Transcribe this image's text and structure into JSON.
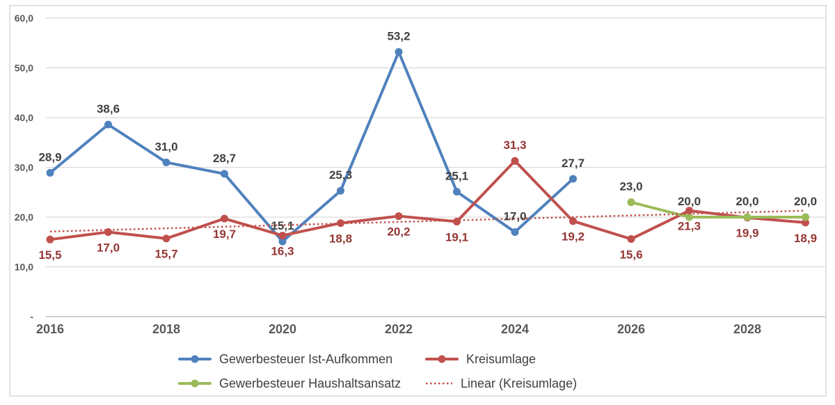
{
  "chart_data": {
    "type": "line",
    "x": [
      2016,
      2017,
      2018,
      2019,
      2020,
      2021,
      2022,
      2023,
      2024,
      2025,
      2026,
      2027,
      2028,
      2029
    ],
    "xlim": [
      2016,
      2029
    ],
    "ylim": [
      0,
      60
    ],
    "grid": "horizontal",
    "legend_position": "bottom",
    "y_ticks": [
      {
        "value": 60,
        "label": "60,0"
      },
      {
        "value": 50,
        "label": "50,0"
      },
      {
        "value": 40,
        "label": "40,0"
      },
      {
        "value": 30,
        "label": "30,0"
      },
      {
        "value": 20,
        "label": "20,0"
      },
      {
        "value": 10,
        "label": "10,0"
      },
      {
        "value": 0,
        "label": "-"
      }
    ],
    "x_ticks": [
      {
        "year": 2016,
        "label": "2016"
      },
      {
        "year": 2018,
        "label": "2018"
      },
      {
        "year": 2020,
        "label": "2020"
      },
      {
        "year": 2022,
        "label": "2022"
      },
      {
        "year": 2024,
        "label": "2024"
      },
      {
        "year": 2026,
        "label": "2026"
      },
      {
        "year": 2028,
        "label": "2028"
      }
    ],
    "series": [
      {
        "name": "Gewerbesteuer Ist-Aufkommen",
        "color": "#4F81BD",
        "label_color": "#404040",
        "marker": "circle",
        "values": [
          28.9,
          38.6,
          31.0,
          28.7,
          15.1,
          25.3,
          53.2,
          25.1,
          17.0,
          27.7,
          null,
          null,
          null,
          null
        ],
        "labels": [
          "28,9",
          "38,6",
          "31,0",
          "28,7",
          "15,1",
          "25,3",
          "53,2",
          "25,1",
          "17,0",
          "27,7",
          null,
          null,
          null,
          null
        ],
        "label_positions": [
          "above",
          "above",
          "above",
          "above",
          "above",
          "above",
          "above",
          "above",
          "above",
          "above",
          null,
          null,
          null,
          null
        ]
      },
      {
        "name": "Kreisumlage",
        "color": "#C0504D",
        "label_color": "#943634",
        "marker": "circle",
        "values": [
          15.5,
          17.0,
          15.7,
          19.7,
          16.3,
          18.8,
          20.2,
          19.1,
          31.3,
          19.2,
          15.6,
          21.3,
          19.9,
          18.9
        ],
        "labels": [
          "15,5",
          "17,0",
          "15,7",
          "19,7",
          "16,3",
          "18,8",
          "20,2",
          "19,1",
          "31,3",
          "19,2",
          "15,6",
          "21,3",
          "19,9",
          "18,9"
        ],
        "label_positions": [
          "below",
          "below",
          "below",
          "below",
          "below",
          "below",
          "below",
          "below",
          "above",
          "below",
          "below",
          "below",
          "below",
          "below"
        ]
      },
      {
        "name": "Gewerbesteuer Haushaltsansatz",
        "color": "#9BBB59",
        "label_color": "#404040",
        "marker": "circle",
        "values": [
          null,
          null,
          null,
          null,
          null,
          null,
          null,
          null,
          null,
          null,
          23.0,
          20.0,
          20.0,
          20.0
        ],
        "labels": [
          null,
          null,
          null,
          null,
          null,
          null,
          null,
          null,
          null,
          null,
          "23,0",
          "20,0",
          "20,0",
          "20,0"
        ],
        "label_positions": [
          null,
          null,
          null,
          null,
          null,
          null,
          null,
          null,
          null,
          null,
          "above",
          "above",
          "above",
          "above"
        ]
      },
      {
        "name": "Linear (Kreisumlage)",
        "type": "trend",
        "line_style": "dotted",
        "color": "#C0504D",
        "x_start": 2016,
        "x_end": 2029,
        "y_start": 17.1,
        "y_end": 21.3
      }
    ],
    "colors": {
      "gridline": "#D9D9D9",
      "axis_line": "#BFBFBF",
      "tick_label": "#595959"
    }
  }
}
